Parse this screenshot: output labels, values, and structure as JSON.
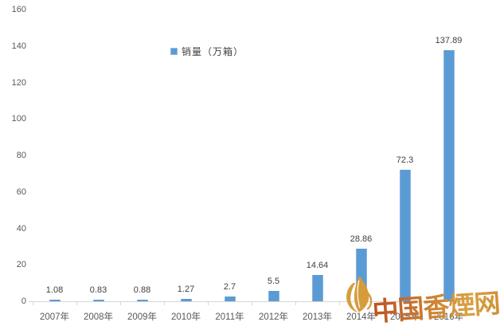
{
  "chart_data": {
    "type": "bar",
    "title": "",
    "xlabel": "",
    "ylabel": "",
    "categories": [
      "2007年",
      "2008年",
      "2009年",
      "2010年",
      "2011年",
      "2012年",
      "2013年",
      "2014年",
      "2015年",
      "2016年"
    ],
    "series": [
      {
        "name": "销量（万箱）",
        "values": [
          1.08,
          0.83,
          0.88,
          1.27,
          2.7,
          5.5,
          14.64,
          28.86,
          72.3,
          137.89
        ]
      }
    ],
    "value_labels": [
      "1.08",
      "0.83",
      "0.88",
      "1.27",
      "2.7",
      "5.5",
      "14.64",
      "28.86",
      "72.3",
      "137.89"
    ],
    "ylim": [
      0,
      160
    ],
    "yticks": [
      0,
      20,
      40,
      60,
      80,
      100,
      120,
      140,
      160
    ],
    "grid": false,
    "legend_position": "top-center",
    "bar_color": "#5B9BD5"
  },
  "legend": {
    "label": "销量（万箱）",
    "swatch_color": "#5B9BD5"
  },
  "watermark": {
    "text": "中国香煙网",
    "gold": "#D69C3C",
    "red": "#BE4E22"
  },
  "axis": {
    "line_color": "#D6D6D6",
    "tick_label_color": "#595959",
    "value_label_color": "#404040"
  }
}
